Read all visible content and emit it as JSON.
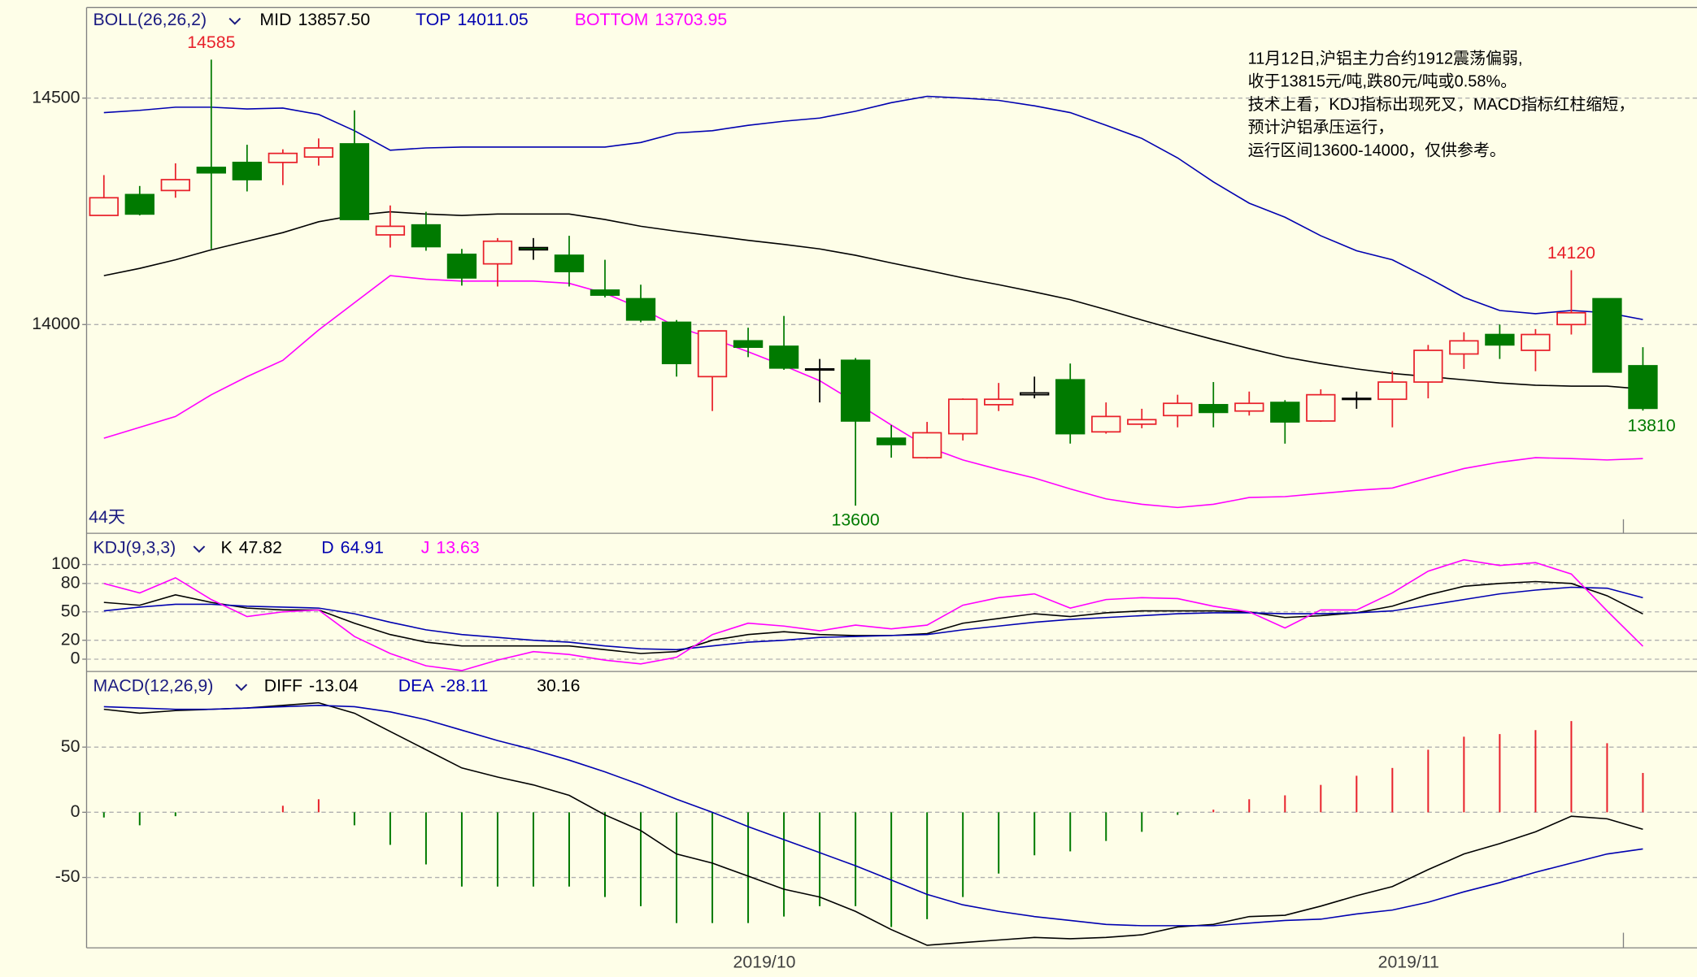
{
  "chart_data": [
    {
      "type": "candlestick",
      "title": "BOLL(26,26,2)",
      "period_label": "44天",
      "categories": [
        null,
        null,
        null,
        null,
        null,
        null,
        null,
        null,
        null,
        null,
        null,
        null,
        null,
        null,
        null,
        null,
        null,
        null,
        "2019/10",
        null,
        null,
        null,
        null,
        null,
        null,
        null,
        null,
        null,
        null,
        null,
        null,
        null,
        null,
        null,
        null,
        null,
        "2019/11",
        null,
        null,
        null,
        null,
        null,
        null,
        null
      ],
      "open": [
        14241,
        14287,
        14296,
        14347,
        14358,
        14358,
        14370,
        14399,
        14198,
        14220,
        14155,
        14134,
        14170,
        14153,
        14076,
        14057,
        14005,
        13885,
        13964,
        13952,
        13902,
        13921,
        13749,
        13706,
        13759,
        13823,
        13845,
        13878,
        13763,
        13780,
        13799,
        13823,
        13809,
        13828,
        13787,
        13835,
        13835,
        13873,
        13935,
        13978,
        13943,
        14000,
        14057,
        13909
      ],
      "high": [
        14330,
        14306,
        14356,
        14585,
        14397,
        14387,
        14411,
        14473,
        14263,
        14249,
        14167,
        14191,
        14191,
        14196,
        14143,
        14088,
        14010,
        13986,
        13993,
        14019,
        13924,
        13926,
        13778,
        13785,
        13837,
        13871,
        13885,
        13914,
        13828,
        13814,
        13845,
        13873,
        13852,
        13833,
        13857,
        13852,
        13897,
        13955,
        13983,
        14000,
        13990,
        14120,
        14057,
        13950
      ],
      "low": [
        14241,
        14241,
        14280,
        14167,
        14294,
        14308,
        14351,
        14232,
        14170,
        14163,
        14086,
        14084,
        14143,
        14084,
        14060,
        14005,
        13885,
        13809,
        13928,
        13900,
        13828,
        13600,
        13706,
        13704,
        13744,
        13809,
        13837,
        13737,
        13759,
        13771,
        13773,
        13773,
        13799,
        13737,
        13785,
        13814,
        13773,
        13837,
        13902,
        13924,
        13897,
        13978,
        13895,
        13810
      ],
      "close": [
        14280,
        14244,
        14320,
        14335,
        14320,
        14378,
        14390,
        14232,
        14217,
        14172,
        14103,
        14184,
        14165,
        14117,
        14065,
        14010,
        13914,
        13986,
        13950,
        13904,
        13900,
        13787,
        13735,
        13761,
        13835,
        13835,
        13849,
        13759,
        13797,
        13790,
        13826,
        13806,
        13826,
        13785,
        13845,
        13837,
        13873,
        13943,
        13964,
        13955,
        13978,
        14026,
        13895,
        13815
      ],
      "up_color": "#e8202a",
      "down_color": "#007a00",
      "series": [
        {
          "name": "MID",
          "color": "#000000",
          "legend_value": "13857.50",
          "values": [
            14108,
            14124,
            14143,
            14165,
            14184,
            14203,
            14227,
            14241,
            14249,
            14244,
            14241,
            14244,
            14244,
            14244,
            14232,
            14217,
            14206,
            14196,
            14186,
            14177,
            14167,
            14153,
            14136,
            14120,
            14103,
            14088,
            14072,
            14055,
            14033,
            14010,
            13988,
            13967,
            13947,
            13928,
            13914,
            13902,
            13892,
            13885,
            13878,
            13871,
            13866,
            13864,
            13864,
            13857.5
          ]
        },
        {
          "name": "TOP",
          "color": "#0000b0",
          "values": [
            14468,
            14473,
            14480,
            14480,
            14476,
            14478,
            14464,
            14428,
            14385,
            14390,
            14392,
            14392,
            14392,
            14392,
            14392,
            14402,
            14423,
            14428,
            14440,
            14449,
            14456,
            14471,
            14490,
            14504,
            14500,
            14495,
            14483,
            14468,
            14440,
            14411,
            14368,
            14315,
            14268,
            14237,
            14196,
            14163,
            14143,
            14103,
            14060,
            14031,
            14024,
            14031,
            14026,
            14011.05
          ]
        },
        {
          "name": "BOTTOM",
          "color": "#ff00ff",
          "values": [
            13749,
            13773,
            13797,
            13845,
            13885,
            13921,
            13988,
            14048,
            14108,
            14100,
            14096,
            14096,
            14096,
            14091,
            14069,
            14036,
            13995,
            13969,
            13940,
            13909,
            13876,
            13828,
            13778,
            13730,
            13701,
            13680,
            13661,
            13637,
            13615,
            13603,
            13596,
            13603,
            13618,
            13620,
            13627,
            13634,
            13639,
            13661,
            13682,
            13696,
            13706,
            13704,
            13701,
            13703.95
          ]
        }
      ],
      "ylim": [
        13539,
        14700
      ],
      "yticks": [
        14000,
        14500
      ],
      "grid": true,
      "note": [
        "11月12日,沪铝主力合约1912震荡偏弱,",
        "收于13815元/吨,跌80元/吨或0.58%。",
        "技术上看，KDJ指标出现死叉，MACD指标红柱缩短，",
        "预计沪铝承压运行，",
        "运行区间13600-14000，仅供参考。"
      ]
    },
    {
      "type": "line",
      "title": "KDJ(9,3,3)",
      "series": [
        {
          "name": "K",
          "color": "#000000",
          "values": [
            60,
            57,
            68,
            60,
            54,
            52,
            52,
            38,
            26,
            18,
            14,
            14,
            14,
            14,
            10,
            6,
            8,
            20,
            26,
            29,
            26,
            25,
            25,
            27,
            38,
            43,
            48,
            45,
            49,
            51,
            51,
            51,
            50,
            44,
            46,
            49,
            56,
            68,
            77,
            80,
            82,
            80,
            67,
            47.82
          ]
        },
        {
          "name": "D",
          "color": "#0000b0",
          "values": [
            51,
            55,
            58,
            58,
            56,
            55,
            54,
            48,
            39,
            31,
            26,
            23,
            20,
            18,
            14,
            11,
            10,
            14,
            18,
            20,
            23,
            24,
            25,
            26,
            31,
            35,
            39,
            42,
            44,
            46,
            48,
            49,
            49,
            48,
            48,
            49,
            51,
            57,
            63,
            69,
            73,
            76,
            75,
            64.91
          ]
        },
        {
          "name": "J",
          "color": "#ff00ff",
          "values": [
            80,
            70,
            86,
            63,
            45,
            50,
            52,
            24,
            6,
            -7,
            -12,
            -1,
            8,
            5,
            -1,
            -5,
            2,
            26,
            38,
            35,
            30,
            36,
            32,
            36,
            57,
            65,
            69,
            54,
            63,
            65,
            64,
            56,
            50,
            33,
            52,
            52,
            70,
            93,
            105,
            99,
            102,
            90,
            51,
            13.63
          ]
        }
      ],
      "ylim": [
        -13,
        133
      ],
      "yticks": [
        0,
        20,
        50,
        80,
        100
      ],
      "grid": true
    },
    {
      "type": "macd",
      "title": "MACD(12,26,9)",
      "series": [
        {
          "name": "DIFF",
          "color": "#000000",
          "values": [
            79,
            76,
            78,
            79,
            80,
            82,
            84,
            76,
            62,
            48,
            34,
            27,
            21,
            13,
            -2,
            -14,
            -32,
            -39,
            -49,
            -59,
            -65,
            -76,
            -90,
            -102,
            -100,
            -98,
            -96,
            -97,
            -96,
            -94,
            -88,
            -86,
            -80,
            -79,
            -72,
            -64,
            -57,
            -44,
            -32,
            -24,
            -15,
            -3,
            -5,
            -13.04
          ]
        },
        {
          "name": "DEA",
          "color": "#0000b0",
          "values": [
            81,
            80,
            79,
            79,
            80,
            81,
            82,
            81,
            77,
            71,
            63,
            55,
            48,
            40,
            31,
            21,
            10,
            0,
            -11,
            -21,
            -31,
            -41,
            -52,
            -63,
            -71,
            -76,
            -80,
            -83,
            -86,
            -87,
            -87,
            -87,
            -85,
            -83,
            -82,
            -78,
            -75,
            -69,
            -61,
            -54,
            -46,
            -39,
            -32,
            -28.11
          ]
        }
      ],
      "histogram": [
        -4,
        -10,
        -3,
        0,
        0,
        5,
        10,
        -10,
        -25,
        -40,
        -57,
        -57,
        -57,
        -57,
        -65,
        -72,
        -85,
        -85,
        -85,
        -80,
        -72,
        -72,
        -88,
        -82,
        -65,
        -47,
        -33,
        -30,
        -22,
        -15,
        -2,
        2,
        10,
        13,
        21,
        28,
        34,
        48,
        58,
        60,
        63,
        70,
        53,
        30.16
      ],
      "up_color": "#e8202a",
      "down_color": "#007a00",
      "ylim": [
        -104,
        108
      ],
      "yticks": [
        -50,
        0,
        50
      ],
      "grid": true
    }
  ]
}
